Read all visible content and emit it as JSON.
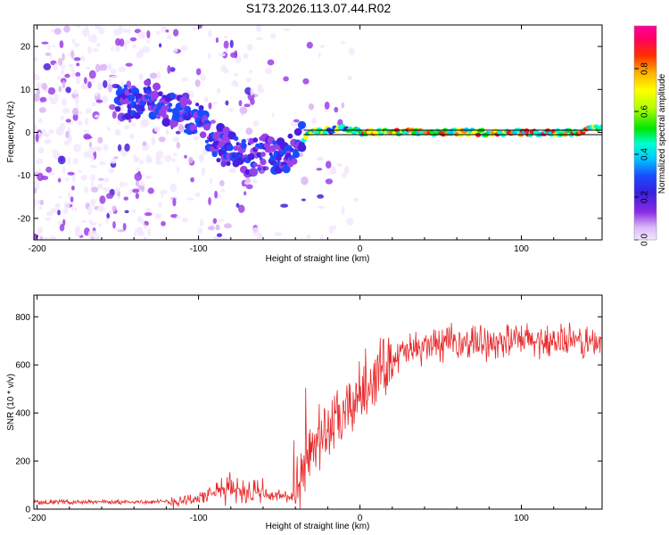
{
  "title": "S173.2026.113.07.44.R02",
  "chart_data": [
    {
      "type": "heatmap",
      "name": "spectrogram",
      "xlabel": "Height of straight line (km)",
      "ylabel": "Frequency (Hz)",
      "xlim": [
        -202,
        150
      ],
      "ylim": [
        -25,
        25
      ],
      "xticks": [
        -200,
        -100,
        0,
        100
      ],
      "xtick_labels": [
        "-200",
        "-100",
        "0",
        "100"
      ],
      "yticks": [
        -20,
        -10,
        0,
        10,
        20
      ],
      "ytick_labels": [
        "-20",
        "-10",
        "0",
        "10",
        "20"
      ],
      "reference_line_y": 0,
      "ridge": {
        "x": [
          -150,
          -130,
          -115,
          -100,
          -90,
          -80,
          -70,
          -60,
          -50,
          -40,
          -30,
          -20,
          -10,
          0,
          20,
          60,
          100,
          130,
          150
        ],
        "y": [
          7,
          8,
          5,
          3,
          -2,
          -4,
          -6,
          -5,
          -6,
          -3,
          0,
          0.5,
          1,
          0,
          0,
          0,
          0,
          0,
          1
        ]
      },
      "colorbar": {
        "label": "Normalized spectral amplitude",
        "range": [
          0,
          1
        ],
        "ticks": [
          0,
          0.2,
          0.4,
          0.6,
          0.8
        ],
        "tick_labels": [
          "0.0",
          "0.2",
          "0.4",
          "0.6",
          "0.8"
        ]
      }
    },
    {
      "type": "line",
      "name": "snr",
      "xlabel": "Height of straight line (km)",
      "ylabel": "SNR (10 * v/v)",
      "xlim": [
        -202,
        150
      ],
      "ylim": [
        0,
        890
      ],
      "xticks": [
        -200,
        -100,
        0,
        100
      ],
      "xtick_labels": [
        "-200",
        "-100",
        "0",
        "100"
      ],
      "yticks": [
        0,
        200,
        400,
        600,
        800
      ],
      "ytick_labels": [
        "0",
        "200",
        "400",
        "600",
        "800"
      ],
      "color": "#e8282a",
      "trend": {
        "x": [
          -202,
          -120,
          -100,
          -80,
          -60,
          -40,
          -30,
          -20,
          -10,
          0,
          10,
          20,
          40,
          80,
          120,
          150
        ],
        "y": [
          30,
          30,
          45,
          90,
          60,
          50,
          250,
          330,
          380,
          480,
          560,
          630,
          680,
          700,
          700,
          690
        ]
      }
    }
  ]
}
